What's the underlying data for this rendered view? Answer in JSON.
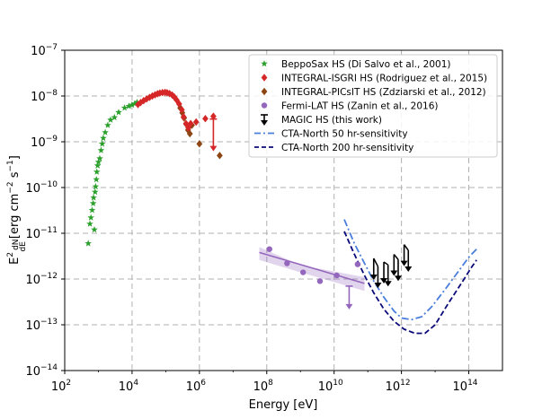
{
  "chart_data": {
    "type": "scatter",
    "title": "",
    "xlabel": "Energy [eV]",
    "ylabel_prefix": "E",
    "ylabel_sup": "2",
    "ylabel_frac_num": "dN",
    "ylabel_frac_den": "dE",
    "ylabel_units": "[erg cm",
    "ylabel_exp1": "−2",
    "ylabel_s": " s",
    "ylabel_exp2": "−1",
    "ylabel_close": "]",
    "xscale": "log",
    "yscale": "log",
    "xlim": [
      100,
      1000000000000000.0
    ],
    "ylim": [
      1e-14,
      1e-07
    ],
    "grid": true,
    "legend_position": "top-right",
    "x_ticks": [
      {
        "base": "10",
        "exp": "2",
        "value": 100
      },
      {
        "base": "10",
        "exp": "4",
        "value": 10000
      },
      {
        "base": "10",
        "exp": "6",
        "value": 1000000
      },
      {
        "base": "10",
        "exp": "8",
        "value": 100000000
      },
      {
        "base": "10",
        "exp": "10",
        "value": 10000000000
      },
      {
        "base": "10",
        "exp": "12",
        "value": 1000000000000
      },
      {
        "base": "10",
        "exp": "14",
        "value": 100000000000000
      }
    ],
    "y_ticks": [
      {
        "base": "10",
        "exp": "−14",
        "value": 1e-14
      },
      {
        "base": "10",
        "exp": "−13",
        "value": 1e-13
      },
      {
        "base": "10",
        "exp": "−12",
        "value": 1e-12
      },
      {
        "base": "10",
        "exp": "−11",
        "value": 1e-11
      },
      {
        "base": "10",
        "exp": "−10",
        "value": 1e-10
      },
      {
        "base": "10",
        "exp": "−9",
        "value": 1e-09
      },
      {
        "base": "10",
        "exp": "−8",
        "value": 1e-08
      },
      {
        "base": "10",
        "exp": "−7",
        "value": 1e-07
      }
    ],
    "legend": [
      {
        "key": "bepposax",
        "label": "BeppoSax HS (Di Salvo et al., 2001)",
        "marker": "star",
        "color": "#2ca02c"
      },
      {
        "key": "isgri",
        "label": "INTEGRAL-ISGRI HS (Rodriguez et al., 2015)",
        "marker": "diamond",
        "color": "#d62728"
      },
      {
        "key": "picsit",
        "label": "INTEGRAL-PICsIT HS (Zdziarski et al., 2012)",
        "marker": "diamond",
        "color": "#8c4513"
      },
      {
        "key": "fermi",
        "label": "Fermi-LAT HS (Zanin et al., 2016)",
        "marker": "circle",
        "color": "#9467bd"
      },
      {
        "key": "magic",
        "label": "MAGIC HS (this work)",
        "marker": "arrow",
        "color": "#000000"
      },
      {
        "key": "cta50",
        "label": "CTA-North 50 hr-sensitivity",
        "marker": "dashdot",
        "color": "#4a7ddc"
      },
      {
        "key": "cta200",
        "label": "CTA-North 200 hr-sensitivity",
        "marker": "dashed",
        "color": "#0a0a7a"
      }
    ],
    "series": [
      {
        "name": "BeppoSax HS",
        "color": "#2ca02c",
        "points": [
          [
            500,
            6e-12
          ],
          [
            560,
            1.6e-11
          ],
          [
            600,
            2.2e-11
          ],
          [
            650,
            3.2e-11
          ],
          [
            700,
            4.5e-11
          ],
          [
            720,
            6e-11
          ],
          [
            760,
            1.2e-11
          ],
          [
            800,
            8e-11
          ],
          [
            830,
            1.05e-10
          ],
          [
            870,
            1.5e-10
          ],
          [
            900,
            2.2e-10
          ],
          [
            950,
            3e-10
          ],
          [
            1000,
            3.6e-10
          ],
          [
            1100,
            4.3e-10
          ],
          [
            1200,
            6.5e-10
          ],
          [
            1300,
            9e-10
          ],
          [
            1400,
            1.2e-09
          ],
          [
            1600,
            1.6e-09
          ],
          [
            1900,
            2.3e-09
          ],
          [
            2300,
            3e-09
          ],
          [
            3000,
            3.4e-09
          ],
          [
            4000,
            4.4e-09
          ],
          [
            6000,
            5.5e-09
          ],
          [
            8000,
            6e-09
          ],
          [
            10000,
            6.4e-09
          ],
          [
            12000,
            6.8e-09
          ],
          [
            14000,
            7.3e-09
          ]
        ]
      },
      {
        "name": "INTEGRAL-ISGRI HS",
        "color": "#d62728",
        "points": [
          [
            15000,
            6.5e-09
          ],
          [
            18000,
            7.2e-09
          ],
          [
            22000,
            7.9e-09
          ],
          [
            27000,
            8.6e-09
          ],
          [
            33000,
            9.3e-09
          ],
          [
            40000,
            1e-08
          ],
          [
            48000,
            1.06e-08
          ],
          [
            57000,
            1.12e-08
          ],
          [
            67000,
            1.16e-08
          ],
          [
            80000,
            1.19e-08
          ],
          [
            95000,
            1.2e-08
          ],
          [
            110000,
            1.18e-08
          ],
          [
            130000,
            1.13e-08
          ],
          [
            155000,
            1.05e-08
          ],
          [
            180000,
            9.5e-09
          ],
          [
            210000,
            8.2e-09
          ],
          [
            250000,
            6.7e-09
          ],
          [
            300000,
            5e-09
          ],
          [
            340000,
            3.5e-09
          ],
          [
            400000,
            2.5e-09
          ],
          [
            470000,
            2e-09
          ],
          [
            550000,
            2.5e-09
          ],
          [
            800000,
            2.7e-09
          ],
          [
            1500000,
            3.2e-09
          ],
          [
            2600000,
            3.6e-09
          ]
        ],
        "upper_limits": [
          [
            2600000,
            2e-09
          ]
        ]
      },
      {
        "name": "INTEGRAL-PICsIT HS",
        "color": "#8c4513",
        "points": [
          [
            270000,
            5.5e-09
          ],
          [
            310000,
            4.3e-09
          ],
          [
            350000,
            3.3e-09
          ],
          [
            410000,
            2.4e-09
          ],
          [
            460000,
            1.8e-09
          ],
          [
            520000,
            1.5e-09
          ],
          [
            600000,
            2.3e-09
          ],
          [
            1000000,
            9e-10
          ],
          [
            4000000,
            5e-10
          ]
        ]
      },
      {
        "name": "Fermi-LAT HS",
        "color": "#9467bd",
        "points": [
          [
            120000000,
            4.5e-12
          ],
          [
            400000000,
            2.2e-12
          ],
          [
            1200000000,
            1.4e-12
          ],
          [
            3800000000,
            9e-13
          ],
          [
            12000000000,
            1.2e-12
          ],
          [
            50000000000,
            2.1e-12
          ]
        ],
        "upper_limits": [
          [
            28000000000,
            7e-13
          ]
        ],
        "fit_line": [
          [
            60000000,
            3.8e-12
          ],
          [
            80000000000,
            8e-13
          ]
        ],
        "band_upper": [
          [
            60000000,
            5e-12
          ],
          [
            1000000000,
            2e-12
          ],
          [
            80000000000,
            1.1e-12
          ]
        ],
        "band_lower": [
          [
            60000000,
            2.6e-12
          ],
          [
            1000000000,
            1.4e-12
          ],
          [
            80000000000,
            5.5e-13
          ]
        ]
      },
      {
        "name": "MAGIC HS",
        "color": "#000000",
        "upper_limits": [
          [
            150000000000,
            1.8e-12
          ],
          [
            200000000000,
            1.2e-12
          ],
          [
            300000000000,
            1.5e-12
          ],
          [
            400000000000,
            1.3e-12
          ],
          [
            600000000000,
            2.2e-12
          ],
          [
            800000000000,
            1.7e-12
          ],
          [
            1200000000000,
            3.6e-12
          ],
          [
            1600000000000,
            2.7e-12
          ]
        ],
        "ul_length_factor": 2.6
      },
      {
        "name": "CTA-North 50 hr-sensitivity",
        "color": "#4a7ddc",
        "line": [
          [
            20000000000,
            2e-11
          ],
          [
            40000000000,
            6e-12
          ],
          [
            80000000000,
            2.2e-12
          ],
          [
            150000000000,
            9e-13
          ],
          [
            300000000000,
            4e-13
          ],
          [
            600000000000,
            2e-13
          ],
          [
            1000000000000,
            1.4e-13
          ],
          [
            2000000000000,
            1.3e-13
          ],
          [
            4000000000000,
            1.5e-13
          ],
          [
            8000000000000,
            2.5e-13
          ],
          [
            20000000000000,
            6e-13
          ],
          [
            50000000000000,
            1.5e-12
          ],
          [
            100000000000000,
            3e-12
          ],
          [
            170000000000000,
            4.5e-12
          ]
        ]
      },
      {
        "name": "CTA-North 200 hr-sensitivity",
        "color": "#0a0a7a",
        "line": [
          [
            20000000000,
            1.1e-11
          ],
          [
            40000000000,
            3.5e-12
          ],
          [
            80000000000,
            1.2e-12
          ],
          [
            150000000000,
            5e-13
          ],
          [
            300000000000,
            2.2e-13
          ],
          [
            600000000000,
            1.2e-13
          ],
          [
            1200000000000,
            8e-14
          ],
          [
            2500000000000,
            6.5e-14
          ],
          [
            5000000000000,
            6.5e-14
          ],
          [
            10000000000000,
            1e-13
          ],
          [
            25000000000000,
            3e-13
          ],
          [
            60000000000000,
            8e-13
          ],
          [
            120000000000000,
            1.8e-12
          ],
          [
            170000000000000,
            2.6e-12
          ]
        ]
      }
    ]
  }
}
